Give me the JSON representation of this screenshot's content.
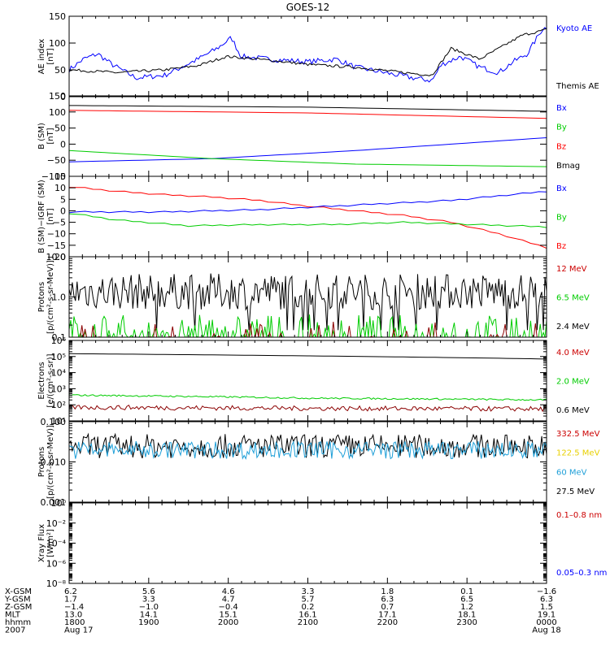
{
  "title": "GOES-12",
  "panels": [
    {
      "id": "ae",
      "ylabel": [
        "AE index",
        "[nT]"
      ],
      "scale": "linear",
      "ylim": [
        0,
        150
      ],
      "ticks": [
        {
          "v": 0,
          "label": "0"
        },
        {
          "v": 50,
          "label": "50"
        },
        {
          "v": 100,
          "label": "100"
        },
        {
          "v": 150,
          "label": "150"
        }
      ],
      "series": [
        {
          "name": "Kyoto AE",
          "color": "#0000ff",
          "kind": "noisy",
          "amp": 5,
          "knots": [
            [
              0,
              50
            ],
            [
              0.03,
              70
            ],
            [
              0.06,
              80
            ],
            [
              0.09,
              60
            ],
            [
              0.14,
              35
            ],
            [
              0.2,
              40
            ],
            [
              0.27,
              70
            ],
            [
              0.31,
              90
            ],
            [
              0.34,
              110
            ],
            [
              0.36,
              75
            ],
            [
              0.42,
              70
            ],
            [
              0.5,
              65
            ],
            [
              0.56,
              70
            ],
            [
              0.6,
              55
            ],
            [
              0.66,
              45
            ],
            [
              0.72,
              35
            ],
            [
              0.76,
              30
            ],
            [
              0.78,
              60
            ],
            [
              0.82,
              75
            ],
            [
              0.86,
              55
            ],
            [
              0.9,
              45
            ],
            [
              0.93,
              65
            ],
            [
              0.96,
              80
            ],
            [
              0.99,
              125
            ],
            [
              1.0,
              130
            ]
          ]
        },
        {
          "name": "Themis AE",
          "color": "#000000",
          "kind": "noisy",
          "amp": 2.5,
          "knots": [
            [
              0,
              50
            ],
            [
              0.1,
              45
            ],
            [
              0.2,
              50
            ],
            [
              0.27,
              58
            ],
            [
              0.33,
              75
            ],
            [
              0.42,
              68
            ],
            [
              0.5,
              60
            ],
            [
              0.6,
              55
            ],
            [
              0.7,
              45
            ],
            [
              0.76,
              40
            ],
            [
              0.78,
              65
            ],
            [
              0.8,
              90
            ],
            [
              0.86,
              70
            ],
            [
              0.9,
              90
            ],
            [
              0.95,
              115
            ],
            [
              1.0,
              125
            ]
          ]
        }
      ],
      "legend": [
        {
          "text": "Kyoto AE",
          "color": "#0000ff"
        },
        {
          "text": "Themis AE",
          "color": "#000000"
        }
      ]
    },
    {
      "id": "bsm",
      "ylabel": [
        "B (SM)",
        "[nT]"
      ],
      "scale": "linear",
      "ylim": [
        -100,
        150
      ],
      "ticks": [
        {
          "v": -100,
          "label": "−100"
        },
        {
          "v": -50,
          "label": "−50"
        },
        {
          "v": 0,
          "label": "0"
        },
        {
          "v": 50,
          "label": "50"
        },
        {
          "v": 100,
          "label": "100"
        },
        {
          "v": 150,
          "label": "150"
        }
      ],
      "series": [
        {
          "name": "Bmag",
          "color": "#000000",
          "kind": "smooth",
          "knots": [
            [
              0,
              120
            ],
            [
              0.5,
              115
            ],
            [
              1.0,
              102
            ]
          ]
        },
        {
          "name": "Bz",
          "color": "#ff0000",
          "kind": "smooth",
          "knots": [
            [
              0,
              105
            ],
            [
              0.5,
              97
            ],
            [
              1.0,
              80
            ]
          ]
        },
        {
          "name": "Bx",
          "color": "#0000ff",
          "kind": "smooth",
          "knots": [
            [
              0,
              -55
            ],
            [
              0.3,
              -45
            ],
            [
              0.6,
              -20
            ],
            [
              1.0,
              20
            ]
          ]
        },
        {
          "name": "By",
          "color": "#00cc00",
          "kind": "smooth",
          "knots": [
            [
              0,
              -20
            ],
            [
              0.3,
              -45
            ],
            [
              0.6,
              -62
            ],
            [
              1.0,
              -70
            ]
          ]
        }
      ],
      "legend": [
        {
          "text": "Bx",
          "color": "#0000ff"
        },
        {
          "text": "By",
          "color": "#00cc00"
        },
        {
          "text": "Bz",
          "color": "#ff0000"
        },
        {
          "text": "Bmag",
          "color": "#000000"
        }
      ]
    },
    {
      "id": "bigrf",
      "ylabel": [
        "B (SM)−IGRF (SM)",
        "[nT]"
      ],
      "scale": "linear",
      "ylim": [
        -20,
        15
      ],
      "ticks": [
        {
          "v": -20,
          "label": "−20"
        },
        {
          "v": -15,
          "label": "−15"
        },
        {
          "v": -10,
          "label": "−10"
        },
        {
          "v": -5,
          "label": "−5"
        },
        {
          "v": 0,
          "label": "0"
        },
        {
          "v": 5,
          "label": "5"
        },
        {
          "v": 10,
          "label": "10"
        },
        {
          "v": 15,
          "label": "15"
        }
      ],
      "series": [
        {
          "name": "Bz",
          "color": "#ff0000",
          "kind": "step",
          "knots": [
            [
              0,
              10.5
            ],
            [
              0.1,
              8.5
            ],
            [
              0.2,
              7
            ],
            [
              0.3,
              6
            ],
            [
              0.4,
              4.5
            ],
            [
              0.5,
              2
            ],
            [
              0.6,
              0
            ],
            [
              0.7,
              -2
            ],
            [
              0.8,
              -5
            ],
            [
              0.9,
              -10
            ],
            [
              1.0,
              -16
            ]
          ]
        },
        {
          "name": "Bx",
          "color": "#0000ff",
          "kind": "step",
          "knots": [
            [
              0,
              -0.5
            ],
            [
              0.2,
              -0.5
            ],
            [
              0.4,
              0.5
            ],
            [
              0.6,
              2.5
            ],
            [
              0.8,
              4.5
            ],
            [
              1.0,
              8.5
            ]
          ]
        },
        {
          "name": "By",
          "color": "#00cc00",
          "kind": "step",
          "knots": [
            [
              0,
              -1
            ],
            [
              0.1,
              -4
            ],
            [
              0.25,
              -6.5
            ],
            [
              0.4,
              -6
            ],
            [
              0.55,
              -6
            ],
            [
              0.7,
              -5
            ],
            [
              0.85,
              -6
            ],
            [
              1.0,
              -7
            ]
          ]
        }
      ],
      "legend": [
        {
          "text": "Bx",
          "color": "#0000ff"
        },
        {
          "text": "By",
          "color": "#00cc00"
        },
        {
          "text": "Bz",
          "color": "#ff0000"
        }
      ]
    },
    {
      "id": "protons_hi",
      "ylabel": [
        "Protons",
        "[p/(cm²-s-sr-MeV)]"
      ],
      "scale": "log",
      "ylim": [
        0.1,
        10
      ],
      "ticks": [
        {
          "v": 0.1,
          "label": "0.1"
        },
        {
          "v": 1,
          "label": "1.0"
        },
        {
          "v": 10,
          "label": "10.0"
        }
      ],
      "series": [
        {
          "name": "2.4 MeV",
          "color": "#000000",
          "kind": "spiky",
          "base": 1.0,
          "amp": 0.45,
          "low": 0.15,
          "dropout": 0.06
        },
        {
          "name": "6.5 MeV",
          "color": "#00cc00",
          "kind": "spiky",
          "base": 0.11,
          "amp": 0.4,
          "low": 0.1,
          "dropout": 0.45
        },
        {
          "name": "12 MeV",
          "color": "#8b0000",
          "kind": "spiky",
          "base": 0.1,
          "amp": 0.3,
          "low": 0.1,
          "dropout": 0.85
        }
      ],
      "legend": [
        {
          "text": "12 MeV",
          "color": "#cc0000"
        },
        {
          "text": "6.5 MeV",
          "color": "#00cc00"
        },
        {
          "text": "2.4 MeV",
          "color": "#000000"
        }
      ]
    },
    {
      "id": "electrons",
      "ylabel": [
        "Electrons",
        "[e/(cm²-s-sr)]"
      ],
      "scale": "log",
      "ylim": [
        10,
        1000000
      ],
      "ticks": [
        {
          "v": 10,
          "label": "10¹"
        },
        {
          "v": 100,
          "label": "10²"
        },
        {
          "v": 1000,
          "label": "10³"
        },
        {
          "v": 10000,
          "label": "10⁴"
        },
        {
          "v": 100000,
          "label": "10⁵"
        },
        {
          "v": 1000000,
          "label": "10⁶"
        }
      ],
      "series": [
        {
          "name": "0.6 MeV",
          "color": "#000000",
          "kind": "smooth",
          "knots": [
            [
              0,
              150000
            ],
            [
              0.5,
              110000
            ],
            [
              1.0,
              70000
            ]
          ]
        },
        {
          "name": "2.0 MeV",
          "color": "#00cc00",
          "kind": "noisylog",
          "amp": 0.05,
          "knots": [
            [
              0,
              400
            ],
            [
              0.5,
              260
            ],
            [
              1.0,
              200
            ]
          ]
        },
        {
          "name": "4.0 MeV",
          "color": "#8b0000",
          "kind": "noisylog",
          "amp": 0.15,
          "knots": [
            [
              0,
              70
            ],
            [
              0.5,
              60
            ],
            [
              1.0,
              55
            ]
          ]
        }
      ],
      "legend": [
        {
          "text": "4.0 MeV",
          "color": "#cc0000"
        },
        {
          "text": "2.0 MeV",
          "color": "#00cc00"
        },
        {
          "text": "0.6 MeV",
          "color": "#000000"
        }
      ]
    },
    {
      "id": "protons_lo",
      "ylabel": [
        "Protons",
        "[p/(cm²-s-sr-MeV)]"
      ],
      "scale": "log",
      "ylim": [
        0.001,
        0.1
      ],
      "ticks": [
        {
          "v": 0.001,
          "label": "0.001"
        },
        {
          "v": 0.01,
          "label": "0.010"
        },
        {
          "v": 0.1,
          "label": "0.100"
        }
      ],
      "series": [
        {
          "name": "27.5 MeV",
          "color": "#000000",
          "kind": "spiky",
          "base": 0.02,
          "amp": 0.3,
          "low": 0.009,
          "dropout": 0
        },
        {
          "name": "60 MeV",
          "color": "#1e9fd8",
          "kind": "spiky",
          "base": 0.017,
          "amp": 0.22,
          "low": 0.008,
          "dropout": 0
        }
      ],
      "legend": [
        {
          "text": "332.5 MeV",
          "color": "#cc0000"
        },
        {
          "text": "122.5 MeV",
          "color": "#e8d000"
        },
        {
          "text": "60 MeV",
          "color": "#1e9fd8"
        },
        {
          "text": "27.5 MeV",
          "color": "#000000"
        }
      ]
    },
    {
      "id": "xray",
      "ylabel": [
        "Xray  Flux",
        "[W/m²]"
      ],
      "scale": "log",
      "ylim": [
        1e-08,
        1
      ],
      "ticks": [
        {
          "v": 1e-08,
          "label": "10⁻⁸"
        },
        {
          "v": 1e-06,
          "label": "10⁻⁶"
        },
        {
          "v": 0.0001,
          "label": "10⁻⁴"
        },
        {
          "v": 0.01,
          "label": "10⁻²"
        },
        {
          "v": 1,
          "label": "10⁰"
        }
      ],
      "series": [],
      "legend": [
        {
          "text": "0.1–0.8 nm",
          "color": "#cc0000"
        },
        {
          "text": "0.05–0.3 nm",
          "color": "#0000ff"
        }
      ]
    }
  ],
  "xaxis": {
    "row_labels": [
      "X-GSM",
      "Y-GSM",
      "Z-GSM",
      "MLT",
      "hhmm",
      "2007"
    ],
    "columns": [
      {
        "f": 0.0,
        "vals": [
          "6.2",
          "1.7",
          "−1.4",
          "13.0",
          "1800",
          "Aug 17"
        ]
      },
      {
        "f": 0.1667,
        "vals": [
          "5.6",
          "3.3",
          "−1.0",
          "14.1",
          "1900",
          ""
        ]
      },
      {
        "f": 0.3333,
        "vals": [
          "4.6",
          "4.7",
          "−0.4",
          "15.1",
          "2000",
          ""
        ]
      },
      {
        "f": 0.5,
        "vals": [
          "3.3",
          "5.7",
          "0.2",
          "16.1",
          "2100",
          ""
        ]
      },
      {
        "f": 0.6667,
        "vals": [
          "1.8",
          "6.3",
          "0.7",
          "17.1",
          "2200",
          ""
        ]
      },
      {
        "f": 0.8333,
        "vals": [
          "0.1",
          "6.5",
          "1.2",
          "18.1",
          "2300",
          ""
        ]
      },
      {
        "f": 1.0,
        "vals": [
          "−1.6",
          "6.3",
          "1.5",
          "19.1",
          "0000",
          "Aug 18"
        ]
      }
    ]
  }
}
